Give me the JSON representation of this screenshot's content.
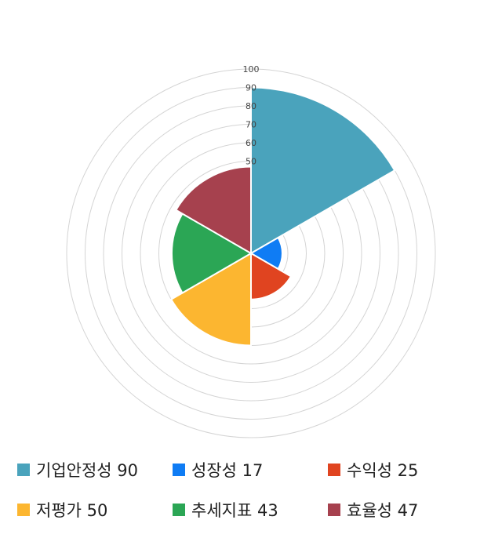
{
  "chart_data": {
    "type": "polar-area",
    "rmax": 100,
    "ticks": [
      "100",
      "90",
      "80",
      "70",
      "60",
      "50"
    ],
    "tick_values": [
      100,
      90,
      80,
      70,
      60,
      50
    ],
    "rings": [
      10,
      20,
      30,
      40,
      50,
      60,
      70,
      80,
      90,
      100
    ],
    "grid": true,
    "legend_position": "bottom",
    "series": [
      {
        "name": "기업안정성",
        "value": 90,
        "color": "#4aa3bc",
        "label": "기업안정성 90"
      },
      {
        "name": "성장성",
        "value": 17,
        "color": "#0f7cf4",
        "label": "성장성 17"
      },
      {
        "name": "수익성",
        "value": 25,
        "color": "#e04420",
        "label": "수익성 25"
      },
      {
        "name": "저평가",
        "value": 50,
        "color": "#fcb630",
        "label": "저평가 50"
      },
      {
        "name": "추세지표",
        "value": 43,
        "color": "#2ba655",
        "label": "추세지표 43"
      },
      {
        "name": "효율성",
        "value": 47,
        "color": "#a6414e",
        "label": "효율성 47"
      }
    ]
  }
}
